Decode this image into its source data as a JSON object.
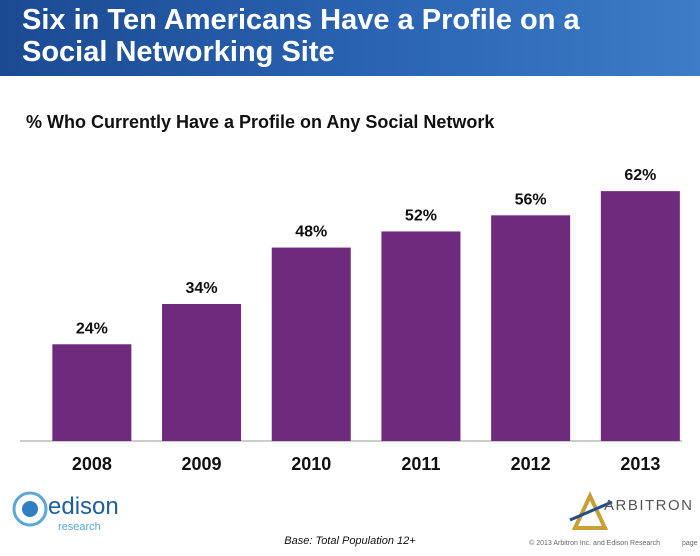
{
  "chart_data": {
    "type": "bar",
    "title": "Six in Ten Americans Have a Profile on a Social Networking Site",
    "subtitle": "% Who Currently Have a Profile on Any Social Network",
    "categories": [
      "2008",
      "2009",
      "2010",
      "2011",
      "2012",
      "2013"
    ],
    "values": [
      24,
      34,
      48,
      52,
      56,
      62
    ],
    "value_labels": [
      "24%",
      "34%",
      "48%",
      "52%",
      "56%",
      "62%"
    ],
    "color": "#6e2a7c",
    "note": "Base: Total Population 12+",
    "copyright": "© 2013 Arbitron Inc. and Edison Research",
    "page_label": "page",
    "logo_left": "edison",
    "logo_left_sub": "research",
    "logo_right": "ARBITRON"
  }
}
